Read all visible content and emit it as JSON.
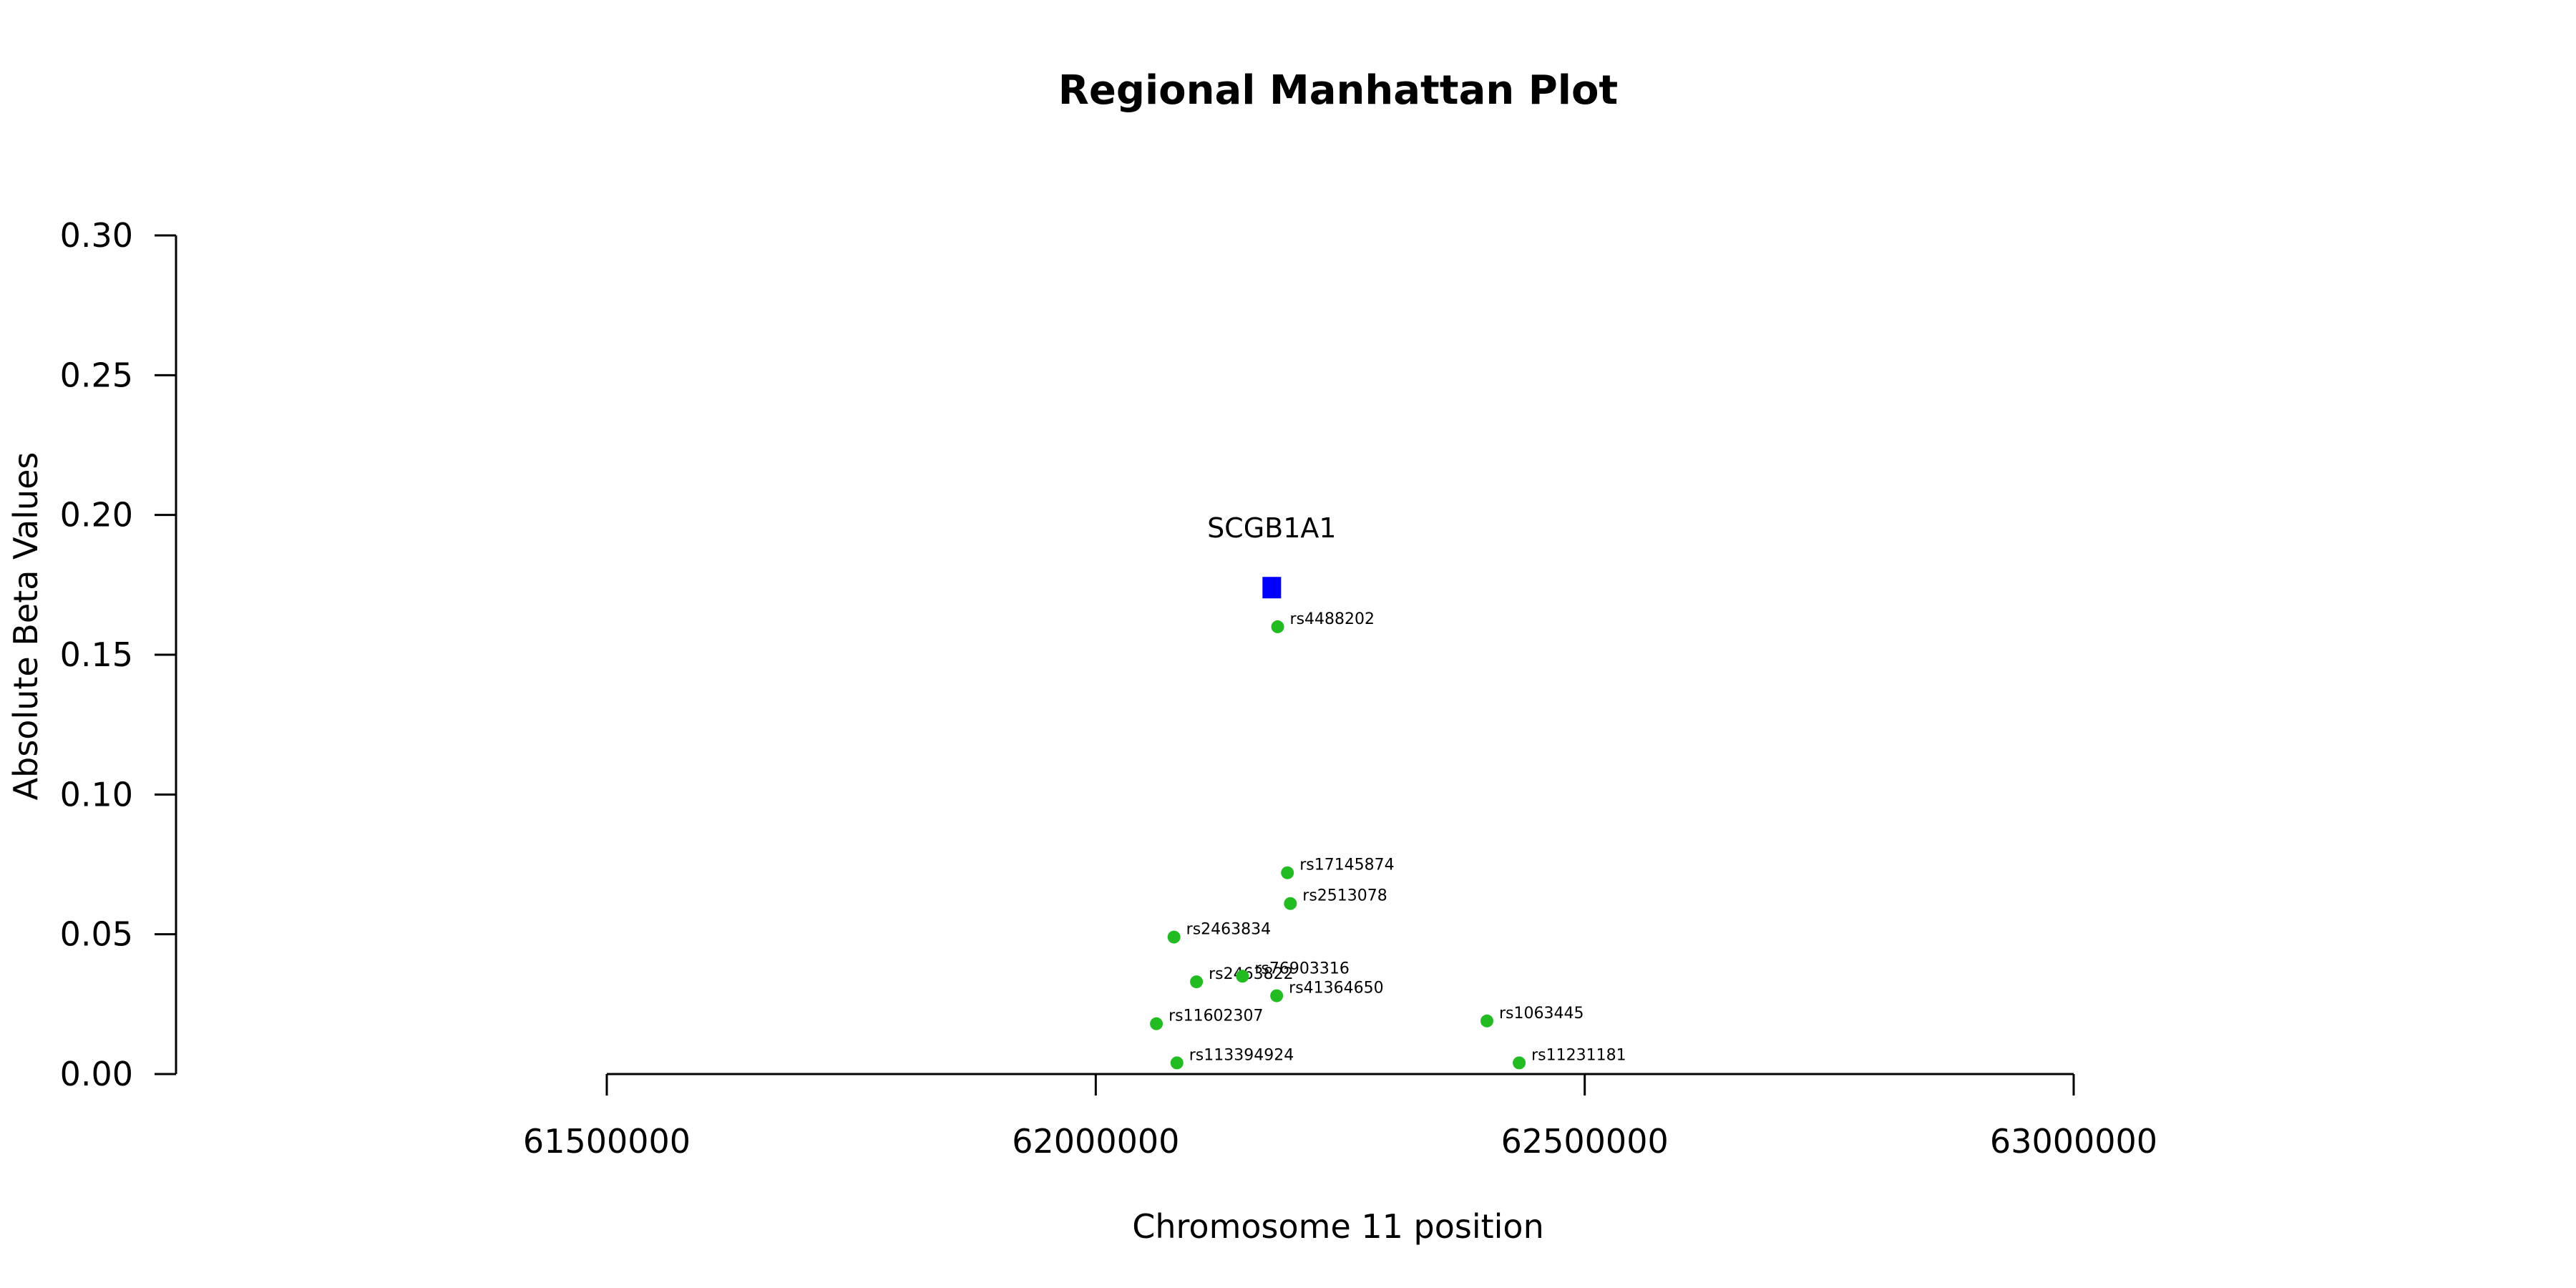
{
  "chart_data": {
    "type": "scatter",
    "title": "Regional Manhattan Plot",
    "xlabel": "Chromosome 11 position",
    "ylabel": "Absolute Beta Values",
    "xlim": [
      61500000,
      63000000
    ],
    "ylim": [
      0.0,
      0.3
    ],
    "x_ticks": [
      61500000,
      62000000,
      62500000,
      63000000
    ],
    "y_ticks": [
      "0.00",
      "0.05",
      "0.10",
      "0.15",
      "0.20",
      "0.25",
      "0.30"
    ],
    "grid": false,
    "legend": "none",
    "gene": {
      "name": "SCGB1A1",
      "x": 62180000,
      "y": 0.174,
      "color": "#0000ff",
      "marker": "square"
    },
    "snp_color": "#22bb22",
    "series": [
      {
        "points": [
          {
            "label": "rs4488202",
            "x": 62186000,
            "y": 0.16
          },
          {
            "label": "rs17145874",
            "x": 62196000,
            "y": 0.072
          },
          {
            "label": "rs2513078",
            "x": 62199000,
            "y": 0.061
          },
          {
            "label": "rs2463834",
            "x": 62080000,
            "y": 0.049
          },
          {
            "label": "rs2463822",
            "x": 62103000,
            "y": 0.033
          },
          {
            "label": "rs76903316",
            "x": 62150000,
            "y": 0.035
          },
          {
            "label": "rs41364650",
            "x": 62185000,
            "y": 0.028
          },
          {
            "label": "rs11602307",
            "x": 62062000,
            "y": 0.018
          },
          {
            "label": "rs1063445",
            "x": 62400000,
            "y": 0.019
          },
          {
            "label": "rs113394924",
            "x": 62083000,
            "y": 0.004
          },
          {
            "label": "rs11231181",
            "x": 62433000,
            "y": 0.004
          }
        ]
      }
    ]
  }
}
